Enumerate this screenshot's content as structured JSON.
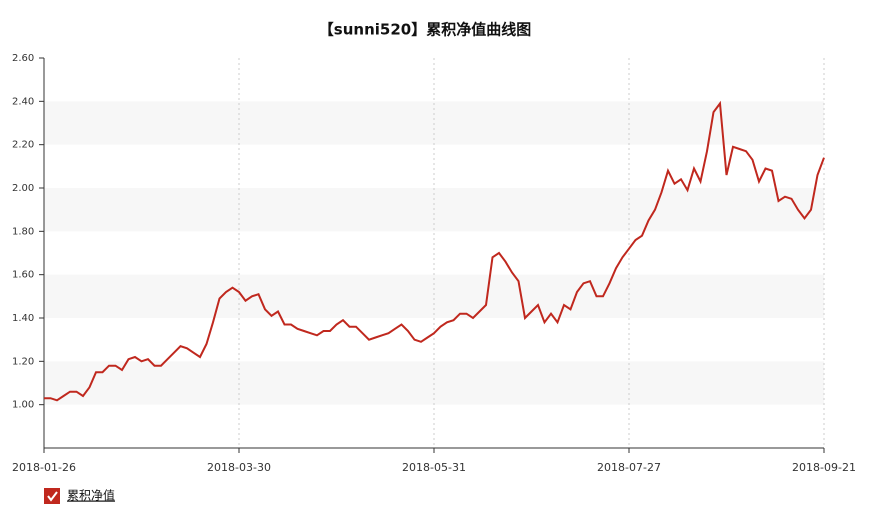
{
  "chart_data": {
    "type": "line",
    "title": "【sunni520】累积净值曲线图",
    "categories": [
      "2018-01-26",
      null,
      null,
      null,
      null,
      null,
      null,
      null,
      null,
      null,
      null,
      null,
      null,
      null,
      null,
      null,
      null,
      null,
      null,
      null,
      null,
      null,
      null,
      null,
      null,
      null,
      null,
      null,
      null,
      null,
      "2018-03-30",
      null,
      null,
      null,
      null,
      null,
      null,
      null,
      null,
      null,
      null,
      null,
      null,
      null,
      null,
      null,
      null,
      null,
      null,
      null,
      null,
      null,
      null,
      null,
      null,
      null,
      null,
      null,
      null,
      null,
      "2018-05-31",
      null,
      null,
      null,
      null,
      null,
      null,
      null,
      null,
      null,
      null,
      null,
      null,
      null,
      null,
      null,
      null,
      null,
      null,
      null,
      null,
      null,
      null,
      null,
      null,
      null,
      null,
      null,
      null,
      null,
      "2018-07-27",
      null,
      null,
      null,
      null,
      null,
      null,
      null,
      null,
      null,
      null,
      null,
      null,
      null,
      null,
      null,
      null,
      null,
      null,
      null,
      null,
      null,
      null,
      null,
      null,
      null,
      null,
      null,
      null,
      null,
      "2018-09-21"
    ],
    "series": [
      {
        "name": "累积净值",
        "color": "#c0281e",
        "values": [
          1.03,
          1.03,
          1.02,
          1.04,
          1.06,
          1.06,
          1.04,
          1.08,
          1.15,
          1.15,
          1.18,
          1.18,
          1.16,
          1.21,
          1.22,
          1.2,
          1.21,
          1.18,
          1.18,
          1.21,
          1.24,
          1.27,
          1.26,
          1.24,
          1.22,
          1.28,
          1.38,
          1.49,
          1.52,
          1.54,
          1.52,
          1.48,
          1.5,
          1.51,
          1.44,
          1.41,
          1.43,
          1.37,
          1.37,
          1.35,
          1.34,
          1.33,
          1.32,
          1.34,
          1.34,
          1.37,
          1.39,
          1.36,
          1.36,
          1.33,
          1.3,
          1.31,
          1.32,
          1.33,
          1.35,
          1.37,
          1.34,
          1.3,
          1.29,
          1.31,
          1.33,
          1.36,
          1.38,
          1.39,
          1.42,
          1.42,
          1.4,
          1.43,
          1.46,
          1.68,
          1.7,
          1.66,
          1.61,
          1.57,
          1.4,
          1.43,
          1.46,
          1.38,
          1.42,
          1.38,
          1.46,
          1.44,
          1.52,
          1.56,
          1.57,
          1.5,
          1.5,
          1.56,
          1.63,
          1.68,
          1.72,
          1.76,
          1.78,
          1.85,
          1.9,
          1.98,
          2.08,
          2.02,
          2.04,
          1.99,
          2.09,
          2.03,
          2.17,
          2.35,
          2.39,
          2.06,
          2.19,
          2.18,
          2.17,
          2.13,
          2.03,
          2.09,
          2.08,
          1.94,
          1.96,
          1.95,
          1.9,
          1.86,
          1.9,
          2.06,
          2.14
        ]
      }
    ],
    "ylim": [
      0.8,
      2.6
    ],
    "yticks": [
      {
        "value": 1.0,
        "label": "1.00"
      },
      {
        "value": 1.2,
        "label": "1.20"
      },
      {
        "value": 1.4,
        "label": "1.40"
      },
      {
        "value": 1.6,
        "label": "1.60"
      },
      {
        "value": 1.8,
        "label": "1.80"
      },
      {
        "value": 2.0,
        "label": "2.00"
      },
      {
        "value": 2.2,
        "label": "2.20"
      },
      {
        "value": 2.4,
        "label": "2.40"
      },
      {
        "value": 2.6,
        "label": "2.60"
      }
    ],
    "grid": true
  }
}
